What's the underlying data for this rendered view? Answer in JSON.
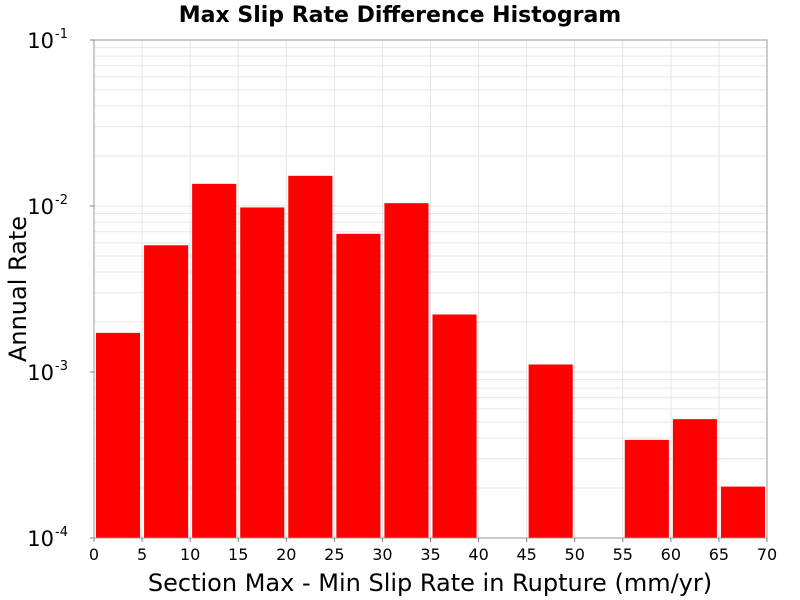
{
  "chart_data": {
    "type": "bar",
    "title": "Max Slip Rate Difference Histogram",
    "xlabel": "Section Max - Min Slip Rate in Rupture (mm/yr)",
    "ylabel": "Annual Rate",
    "y_scale": "log",
    "xlim": [
      0,
      70
    ],
    "ylim": [
      0.0001,
      0.1
    ],
    "grid": true,
    "bin_width": 5,
    "x_ticks": [
      "0",
      "5",
      "10",
      "15",
      "20",
      "25",
      "30",
      "35",
      "40",
      "45",
      "50",
      "55",
      "60",
      "65",
      "70"
    ],
    "y_ticks": [
      {
        "value": 0.1,
        "base": "10",
        "exp": "-1"
      },
      {
        "value": 0.01,
        "base": "10",
        "exp": "-2"
      },
      {
        "value": 0.001,
        "base": "10",
        "exp": "-3"
      },
      {
        "value": 0.0001,
        "base": "10",
        "exp": "-4"
      }
    ],
    "bars": [
      {
        "x_start": 0,
        "x_end": 5,
        "value": 0.00172
      },
      {
        "x_start": 5,
        "x_end": 10,
        "value": 0.0058
      },
      {
        "x_start": 10,
        "x_end": 15,
        "value": 0.0136
      },
      {
        "x_start": 15,
        "x_end": 20,
        "value": 0.0098
      },
      {
        "x_start": 20,
        "x_end": 25,
        "value": 0.0152
      },
      {
        "x_start": 25,
        "x_end": 30,
        "value": 0.0068
      },
      {
        "x_start": 30,
        "x_end": 35,
        "value": 0.0104
      },
      {
        "x_start": 35,
        "x_end": 40,
        "value": 0.00222
      },
      {
        "x_start": 45,
        "x_end": 50,
        "value": 0.00111
      },
      {
        "x_start": 55,
        "x_end": 60,
        "value": 0.00039
      },
      {
        "x_start": 60,
        "x_end": 65,
        "value": 0.00052
      },
      {
        "x_start": 65,
        "x_end": 70,
        "value": 0.000204
      }
    ],
    "bar_color": "#ff0000"
  }
}
